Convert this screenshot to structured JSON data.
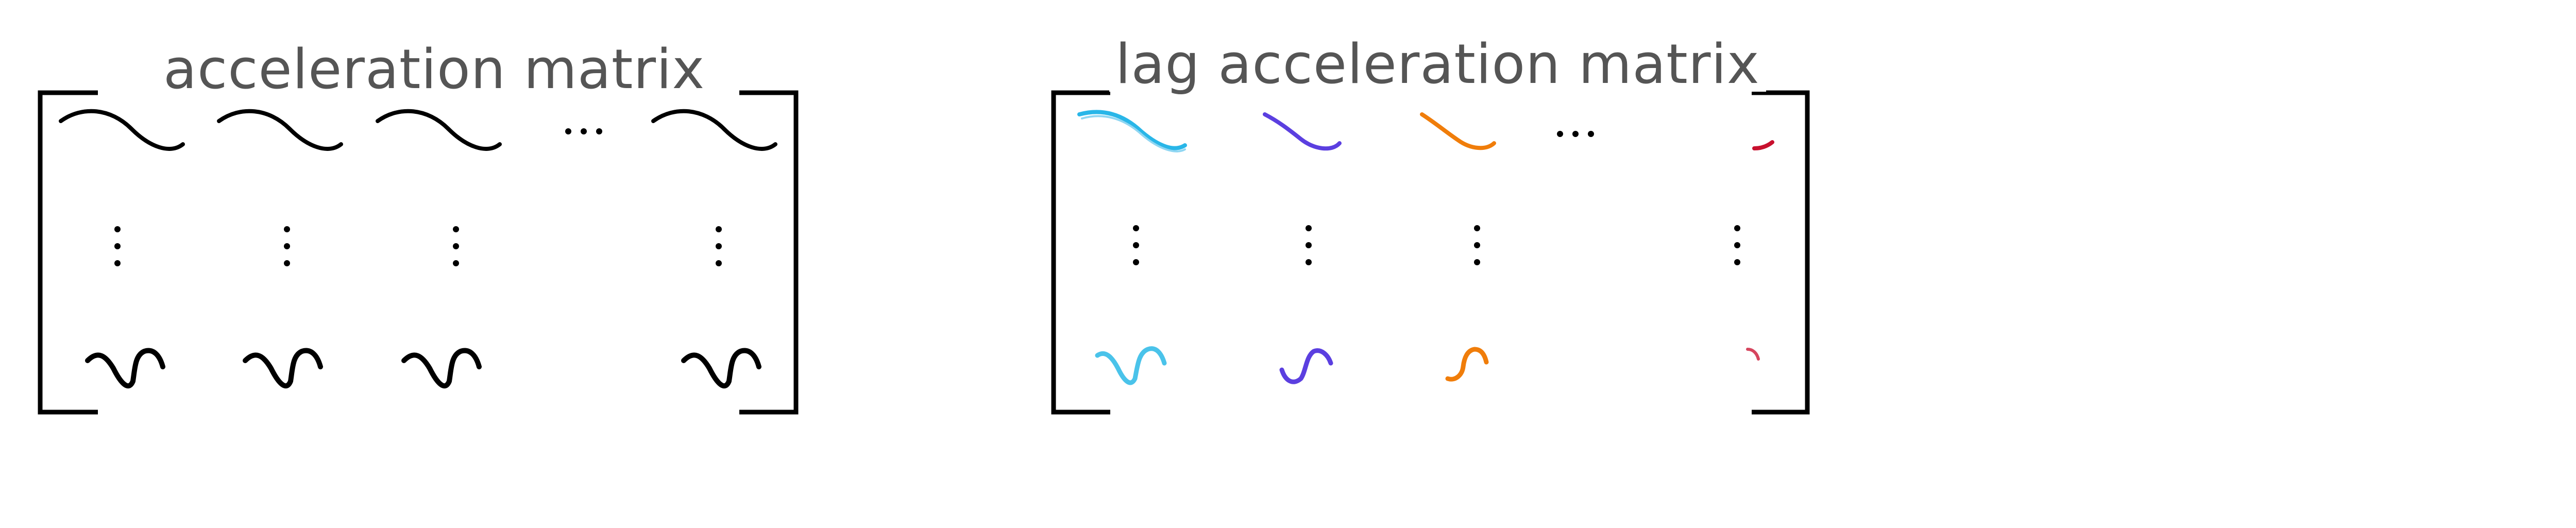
{
  "diagram": {
    "left_matrix": {
      "title": "acceleration matrix",
      "color": "#000000"
    },
    "right_matrix": {
      "title": "lag acceleration matrix",
      "column_colors": [
        "#29b6e8",
        "#5b3fe0",
        "#f07d0a",
        "#c8102e"
      ]
    },
    "ellipsis_horizontal": "···",
    "ellipsis_vertical": "⋮"
  }
}
